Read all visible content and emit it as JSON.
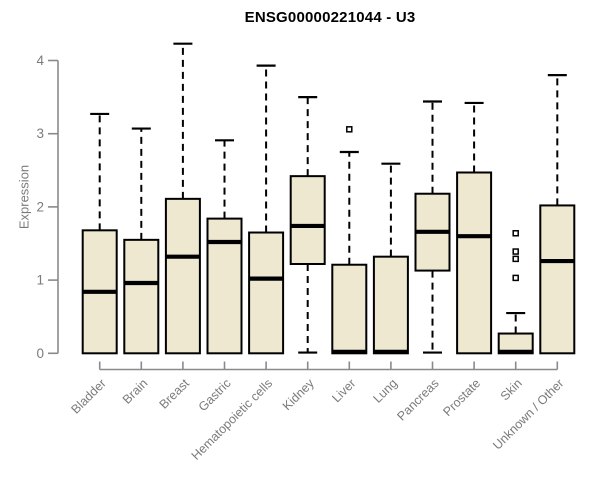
{
  "title": "ENSG00000221044 - U3",
  "chart_data": {
    "type": "boxplot",
    "title": "ENSG00000221044 - U3",
    "xlabel": "",
    "ylabel": "Expression",
    "ylim": [
      0,
      4.3
    ],
    "yticks": [
      0,
      1,
      2,
      3,
      4
    ],
    "grid": false,
    "legend": "none",
    "categories": [
      "Bladder",
      "Brain",
      "Breast",
      "Gastric",
      "Hematopoietic cells",
      "Kidney",
      "Liver",
      "Lung",
      "Pancreas",
      "Prostate",
      "Skin",
      "Unknown / Other"
    ],
    "boxes": [
      {
        "category": "Bladder",
        "slug": "bladder",
        "low": 0,
        "q1": 0,
        "median": 0.84,
        "q3": 1.68,
        "high": 3.27,
        "outliers": []
      },
      {
        "category": "Brain",
        "slug": "brain",
        "low": 0,
        "q1": 0,
        "median": 0.96,
        "q3": 1.55,
        "high": 3.07,
        "outliers": []
      },
      {
        "category": "Breast",
        "slug": "breast",
        "low": 0,
        "q1": 0,
        "median": 1.32,
        "q3": 2.11,
        "high": 4.23,
        "outliers": []
      },
      {
        "category": "Gastric",
        "slug": "gastric",
        "low": 0,
        "q1": 0,
        "median": 1.52,
        "q3": 1.84,
        "high": 2.91,
        "outliers": []
      },
      {
        "category": "Hematopoietic cells",
        "slug": "hematopoietic-cells",
        "low": 0,
        "q1": 0,
        "median": 1.02,
        "q3": 1.65,
        "high": 3.93,
        "outliers": []
      },
      {
        "category": "Kidney",
        "slug": "kidney",
        "low": 0.01,
        "q1": 1.22,
        "median": 1.74,
        "q3": 2.42,
        "high": 3.5,
        "outliers": []
      },
      {
        "category": "Liver",
        "slug": "liver",
        "low": 0,
        "q1": 0,
        "median": 0.02,
        "q3": 1.21,
        "high": 2.75,
        "outliers": [
          3.06
        ]
      },
      {
        "category": "Lung",
        "slug": "lung",
        "low": 0,
        "q1": 0,
        "median": 0.02,
        "q3": 1.32,
        "high": 2.59,
        "outliers": []
      },
      {
        "category": "Pancreas",
        "slug": "pancreas",
        "low": 0.01,
        "q1": 1.13,
        "median": 1.66,
        "q3": 2.18,
        "high": 3.44,
        "outliers": []
      },
      {
        "category": "Prostate",
        "slug": "prostate",
        "low": 0,
        "q1": 0,
        "median": 1.6,
        "q3": 2.47,
        "high": 3.42,
        "outliers": []
      },
      {
        "category": "Skin",
        "slug": "skin",
        "low": 0,
        "q1": 0,
        "median": 0.02,
        "q3": 0.27,
        "high": 0.55,
        "outliers": [
          1.64,
          1.39,
          1.29,
          1.03
        ]
      },
      {
        "category": "Unknown / Other",
        "slug": "unknown-other",
        "low": 0,
        "q1": 0,
        "median": 1.26,
        "q3": 2.02,
        "high": 3.8,
        "outliers": []
      }
    ],
    "colors": {
      "box_fill": "#EDE8CF",
      "box_border": "#000000",
      "median": "#000000",
      "whisker": "#000000",
      "outlier_stroke": "#000000",
      "axis": "#8a8a8a",
      "tick_label": "#7b7b7b",
      "title": "#000000",
      "background": "#FFFFFF"
    }
  }
}
